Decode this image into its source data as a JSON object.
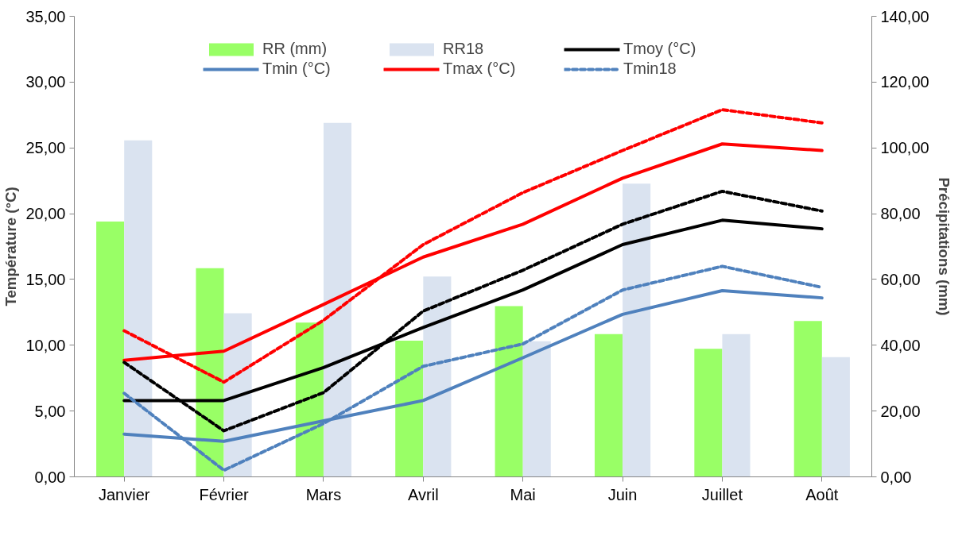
{
  "chart_data": {
    "type": "bar",
    "categories": [
      "Janvier",
      "Février",
      "Mars",
      "Avril",
      "Mai",
      "Juin",
      "Juillet",
      "Août"
    ],
    "ylabel": "Température (°C)",
    "y2label": "Précipitations (mm)",
    "ylim": [
      0,
      35
    ],
    "yticks": [
      {
        "value": 0,
        "label": "0,00"
      },
      {
        "value": 5,
        "label": "5,00"
      },
      {
        "value": 10,
        "label": "10,00"
      },
      {
        "value": 15,
        "label": "15,00"
      },
      {
        "value": 20,
        "label": "20,00"
      },
      {
        "value": 25,
        "label": "25,00"
      },
      {
        "value": 30,
        "label": "30,00"
      },
      {
        "value": 35,
        "label": "35,00"
      }
    ],
    "y2lim": [
      0,
      140
    ],
    "y2ticks": [
      {
        "value": 0,
        "label": "0,00"
      },
      {
        "value": 20,
        "label": "20,00"
      },
      {
        "value": 40,
        "label": "40,00"
      },
      {
        "value": 60,
        "label": "60,00"
      },
      {
        "value": 80,
        "label": "80,00"
      },
      {
        "value": 100,
        "label": "100,00"
      },
      {
        "value": 120,
        "label": "120,00"
      },
      {
        "value": 140,
        "label": "140,00"
      }
    ],
    "grid": false,
    "legend": "top",
    "series": [
      {
        "name": "RR (mm)",
        "axis": "y2",
        "color": "#99ff66",
        "values": [
          77.6,
          63.4,
          46.9,
          41.4,
          51.9,
          43.4,
          38.9,
          47.4
        ]
      },
      {
        "name": "RR18",
        "axis": "y2",
        "color": "#dae3f0",
        "values": [
          102.3,
          49.7,
          107.6,
          60.9,
          41.2,
          89.1,
          43.4,
          36.4
        ]
      },
      {
        "name": "Tmoy (°C)",
        "type": "line",
        "color": "#000000",
        "line_style": "solid",
        "values": [
          5.8,
          5.8,
          8.3,
          11.35,
          14.2,
          17.65,
          19.5,
          18.85
        ]
      },
      {
        "name": "Tmin (°C)",
        "type": "line",
        "color": "#4f81bd",
        "line_style": "solid",
        "values": [
          3.25,
          2.7,
          4.25,
          5.8,
          9.05,
          12.35,
          14.15,
          13.6
        ]
      },
      {
        "name": "Tmax (°C)",
        "type": "line",
        "color": "#ff0000",
        "line_style": "solid",
        "values": [
          8.86,
          9.55,
          13.1,
          16.7,
          19.2,
          22.7,
          25.3,
          24.8
        ]
      },
      {
        "name": "Tmin18",
        "type": "line",
        "color": "#4f81bd",
        "line_style": "dashed",
        "values": [
          6.35,
          0.5,
          4.05,
          8.4,
          10.1,
          14.2,
          16.0,
          14.4
        ]
      },
      {
        "type": "line",
        "color": "#000000",
        "line_style": "dashed",
        "values": [
          8.7,
          3.5,
          6.4,
          12.6,
          15.7,
          19.2,
          21.7,
          20.2
        ]
      },
      {
        "type": "line",
        "color": "#ff0000",
        "line_style": "dashed",
        "values": [
          11.1,
          7.2,
          11.9,
          17.65,
          21.6,
          24.8,
          27.9,
          26.9
        ]
      }
    ]
  }
}
